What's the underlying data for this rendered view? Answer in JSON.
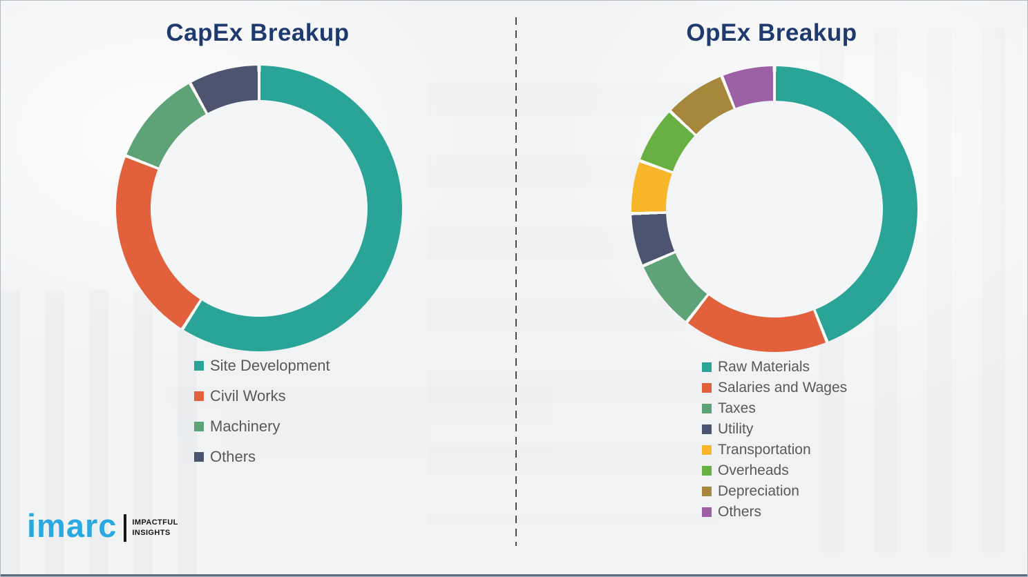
{
  "chart_data": [
    {
      "type": "pie",
      "subtype": "donut",
      "title": "CapEx Breakup",
      "categories": [
        "Site Development",
        "Civil Works",
        "Machinery",
        "Others"
      ],
      "values": [
        59,
        22,
        11,
        8
      ],
      "values_unit": "% (estimated from segment angles, no data labels shown)",
      "colors": [
        "#2AA496",
        "#E2603C",
        "#5EA377",
        "#4D5470"
      ],
      "start_angle_deg": 0,
      "direction": "clockwise",
      "legend_position": "below-chart",
      "segment_gap_color": "#FBFAF7"
    },
    {
      "type": "pie",
      "subtype": "donut",
      "title": "OpEx Breakup",
      "categories": [
        "Raw Materials",
        "Salaries and Wages",
        "Taxes",
        "Utility",
        "Transportation",
        "Overheads",
        "Depreciation",
        "Others"
      ],
      "values": [
        44,
        16.5,
        8,
        6,
        6,
        6.5,
        7,
        6
      ],
      "values_unit": "% (estimated from segment angles, no data labels shown)",
      "colors": [
        "#2AA496",
        "#E2603C",
        "#5EA377",
        "#4D5470",
        "#F8B62B",
        "#69B044",
        "#A5883C",
        "#9C60A5"
      ],
      "start_angle_deg": 0,
      "direction": "clockwise",
      "legend_position": "below-chart",
      "segment_gap_color": "#FBFAF7"
    }
  ],
  "branding": {
    "logo_text": "imarc",
    "tagline_line1": "IMPACTFUL",
    "tagline_line2": "INSIGHTS"
  },
  "theme": {
    "background": "#f1f2f3",
    "title_color": "#1f3a6e",
    "legend_text_color": "#595959",
    "divider_color": "#4a4a4a",
    "logo_blue": "#29a8e1",
    "logo_dark": "#161616",
    "gap_color": "#fbfaf7",
    "hole_color": "#f4f5f6"
  }
}
